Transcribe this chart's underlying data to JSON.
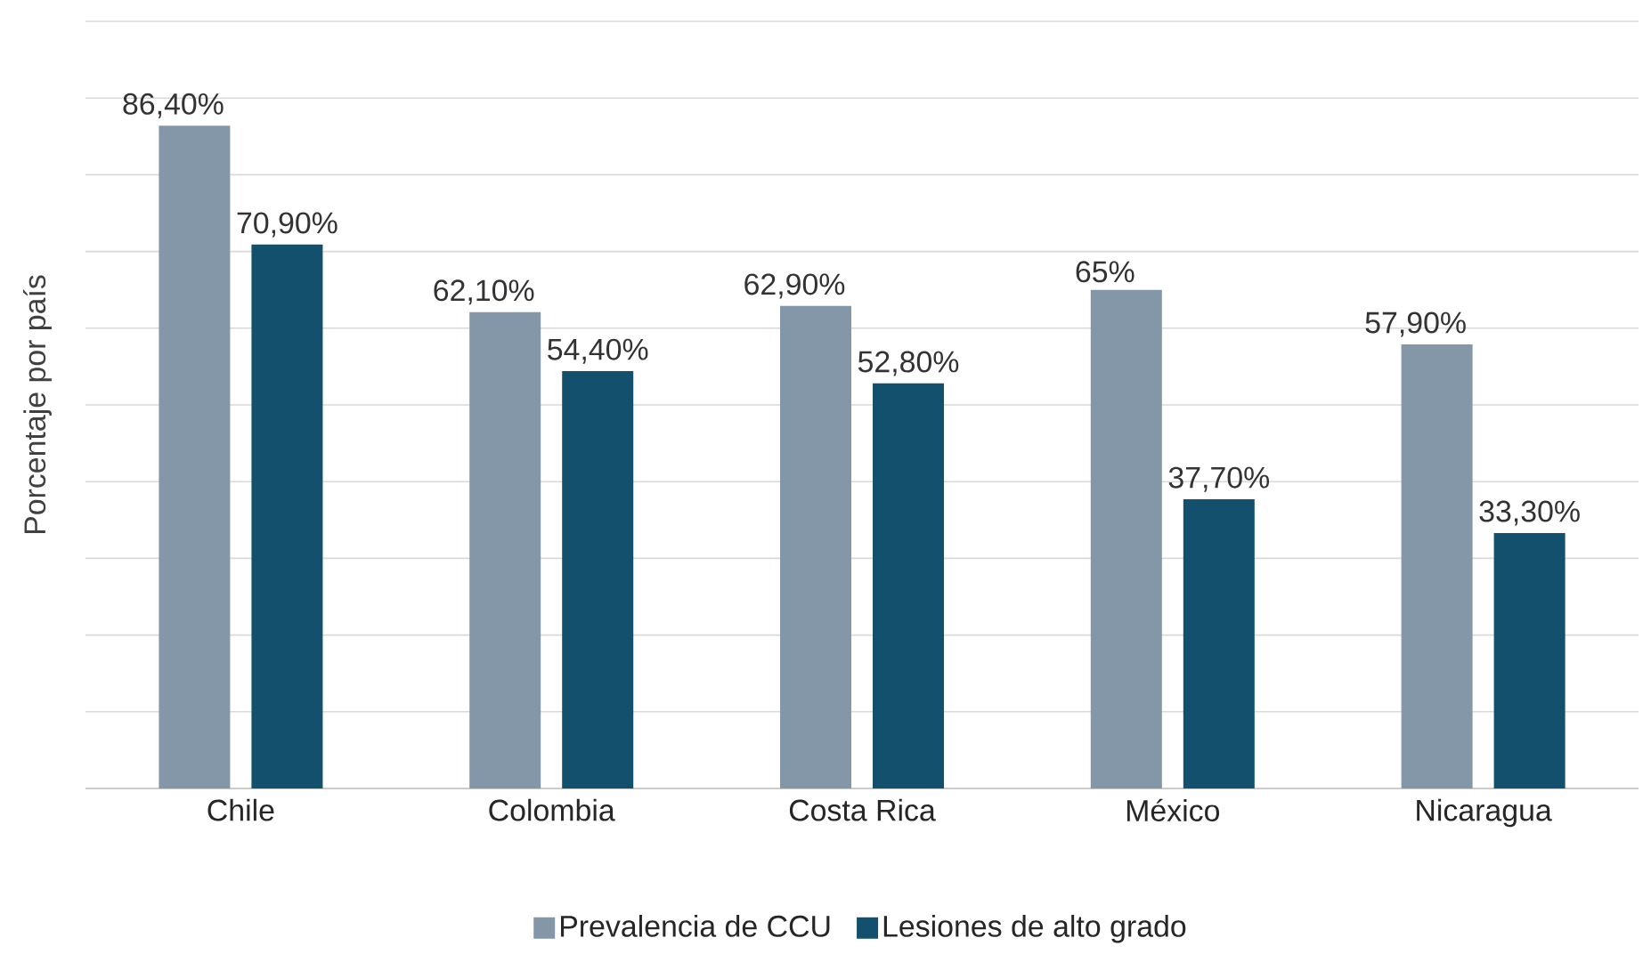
{
  "chart_data": {
    "type": "bar",
    "ylabel": "Porcentaje por país",
    "categories": [
      "Chile",
      "Colombia",
      "Costa Rica",
      "México",
      "Nicaragua"
    ],
    "series": [
      {
        "name": "Prevalencia de CCU",
        "color": "#8497a9",
        "values": [
          86.4,
          62.1,
          62.9,
          65,
          57.9
        ],
        "value_labels": [
          "86,40%",
          "62,10%",
          "62,90%",
          "65%",
          "57,90%"
        ]
      },
      {
        "name": "Lesiones de alto grado",
        "color": "#12506e",
        "values": [
          70.9,
          54.4,
          52.8,
          37.7,
          33.3
        ],
        "value_labels": [
          "70,90%",
          "54,40%",
          "52,80%",
          "37,70%",
          "33,30%"
        ]
      }
    ],
    "ylim": [
      0,
      100
    ],
    "yticks": [
      {
        "value": 0,
        "label": null
      },
      {
        "value": 10,
        "label": null
      },
      {
        "value": 20,
        "label": null
      },
      {
        "value": 30,
        "label": null
      },
      {
        "value": 40,
        "label": null
      },
      {
        "value": 50,
        "label": null
      },
      {
        "value": 60,
        "label": null
      },
      {
        "value": 70,
        "label": null
      },
      {
        "value": 80,
        "label": null
      },
      {
        "value": 90,
        "label": null
      },
      {
        "value": 100,
        "label": null
      }
    ],
    "tick_labels": "x",
    "grid": "y",
    "legend": "bottom"
  }
}
